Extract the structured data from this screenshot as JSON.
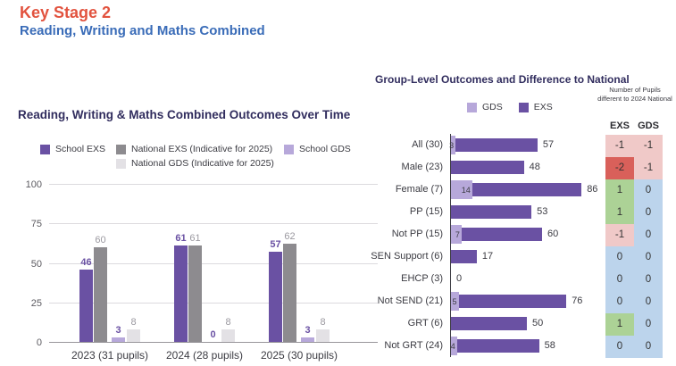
{
  "header": {
    "title": "Key Stage 2",
    "subtitle": "Reading, Writing and Maths Combined"
  },
  "colors": {
    "header_red": "#e2533f",
    "header_blue": "#3a6cb8",
    "title_navy": "#312d5e",
    "school_exs": "#6a51a3",
    "national_exs": "#8d8b8f",
    "school_gds": "#b7a8da",
    "national_gds": "#e3e1e5",
    "label_gray": "#9b99a0",
    "cell_pink": "#f0c9c8",
    "cell_red": "#d9605a",
    "cell_green": "#acd296",
    "cell_blue": "#bcd4ec"
  },
  "chart_data": [
    {
      "id": "time",
      "type": "bar",
      "title": "Reading, Writing & Maths Combined Outcomes Over Time",
      "categories": [
        "2023 (31 pupils)",
        "2024 (28 pupils)",
        "2025 (30 pupils)"
      ],
      "series": [
        {
          "name": "School EXS",
          "key": "school-exs",
          "color_key": "school_exs",
          "label_style": "school",
          "values": [
            46,
            61,
            57
          ]
        },
        {
          "name": "National EXS (Indicative for 2025)",
          "key": "national-exs",
          "color_key": "national_exs",
          "label_style": "national",
          "values": [
            60,
            61,
            62
          ]
        },
        {
          "name": "School GDS",
          "key": "school-gds",
          "color_key": "school_gds",
          "label_style": "school",
          "values": [
            3,
            0,
            3
          ]
        },
        {
          "name": "National GDS (Indicative for 2025)",
          "key": "national-gds",
          "color_key": "national_gds",
          "label_style": "national",
          "values": [
            8,
            8,
            8
          ]
        }
      ],
      "ylim": [
        0,
        100
      ],
      "yticks": [
        0,
        25,
        50,
        75,
        100
      ],
      "grid": true,
      "legend_position": "top"
    },
    {
      "id": "group",
      "type": "bar",
      "orientation": "horizontal",
      "title": "Group-Level Outcomes and Difference to National",
      "categories": [
        "All (30)",
        "Male (23)",
        "Female (7)",
        "PP (15)",
        "Not PP (15)",
        "SEN Support (6)",
        "EHCP (3)",
        "Not SEND (21)",
        "GRT (6)",
        "Not GRT (24)"
      ],
      "series": [
        {
          "name": "GDS",
          "key": "gds",
          "color_key": "school_gds",
          "values": [
            3,
            0,
            14,
            0,
            7,
            0,
            0,
            5,
            0,
            4
          ]
        },
        {
          "name": "EXS",
          "key": "exs",
          "color_key": "school_exs",
          "values": [
            57,
            48,
            86,
            53,
            60,
            17,
            0,
            76,
            50,
            58
          ]
        }
      ],
      "xlim": [
        0,
        100
      ],
      "legend_position": "top"
    },
    {
      "id": "difftable",
      "type": "table",
      "caption": "Number of Pupils different to 2024 National",
      "columns": [
        "EXS",
        "GDS"
      ],
      "rows": [
        {
          "exs": "-1",
          "gds": "-1",
          "exs_bg": "cell_pink",
          "gds_bg": "cell_pink"
        },
        {
          "exs": "-2",
          "gds": "-1",
          "exs_bg": "cell_red",
          "gds_bg": "cell_pink"
        },
        {
          "exs": "1",
          "gds": "0",
          "exs_bg": "cell_green",
          "gds_bg": "cell_blue"
        },
        {
          "exs": "1",
          "gds": "0",
          "exs_bg": "cell_green",
          "gds_bg": "cell_blue"
        },
        {
          "exs": "-1",
          "gds": "0",
          "exs_bg": "cell_pink",
          "gds_bg": "cell_blue"
        },
        {
          "exs": "0",
          "gds": "0",
          "exs_bg": "cell_blue",
          "gds_bg": "cell_blue"
        },
        {
          "exs": "0",
          "gds": "0",
          "exs_bg": "cell_blue",
          "gds_bg": "cell_blue"
        },
        {
          "exs": "0",
          "gds": "0",
          "exs_bg": "cell_blue",
          "gds_bg": "cell_blue"
        },
        {
          "exs": "1",
          "gds": "0",
          "exs_bg": "cell_green",
          "gds_bg": "cell_blue"
        },
        {
          "exs": "0",
          "gds": "0",
          "exs_bg": "cell_blue",
          "gds_bg": "cell_blue"
        }
      ]
    }
  ]
}
